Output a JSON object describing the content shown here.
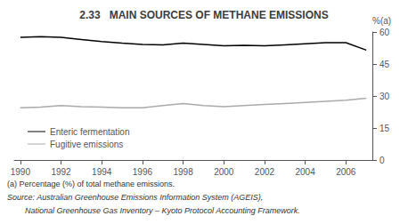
{
  "chart_data": {
    "type": "line",
    "title": "2.33   MAIN SOURCES OF METHANE EMISSIONS",
    "y_label": "%(a)",
    "x": [
      1990,
      1991,
      1992,
      1993,
      1994,
      1995,
      1996,
      1997,
      1998,
      1999,
      2000,
      2001,
      2002,
      2003,
      2004,
      2005,
      2006,
      2007
    ],
    "series": [
      {
        "name": "Enteric fermentation",
        "color": "#000000",
        "values": [
          57.5,
          57.8,
          57.5,
          56.5,
          55.5,
          54.8,
          54.2,
          54.0,
          54.8,
          54.2,
          53.5,
          53.8,
          53.5,
          54.0,
          54.5,
          55.0,
          55.0,
          51.5
        ]
      },
      {
        "name": "Fugitive emissions",
        "color": "#aaaaaa",
        "values": [
          24.5,
          24.8,
          25.5,
          25.0,
          24.8,
          24.5,
          24.5,
          25.5,
          26.5,
          25.5,
          25.0,
          25.5,
          26.0,
          26.5,
          27.0,
          27.5,
          28.0,
          29.0
        ]
      }
    ],
    "xlim": [
      1989.7,
      2007.3
    ],
    "xticks": [
      1990,
      1992,
      1994,
      1996,
      1998,
      2000,
      2002,
      2004,
      2006
    ],
    "ylim": [
      0,
      60
    ],
    "yticks": [
      0,
      15,
      30,
      45,
      60
    ],
    "annotations": [
      "(a) Percentage (%) of total methane emissions.",
      "Source: Australian Greenhouse Emissions Information System (AGEIS),",
      "        National Greenhouse Gas Inventory – Kyoto Protocol Accounting Framework."
    ],
    "legend": "lower left",
    "grid": false
  }
}
